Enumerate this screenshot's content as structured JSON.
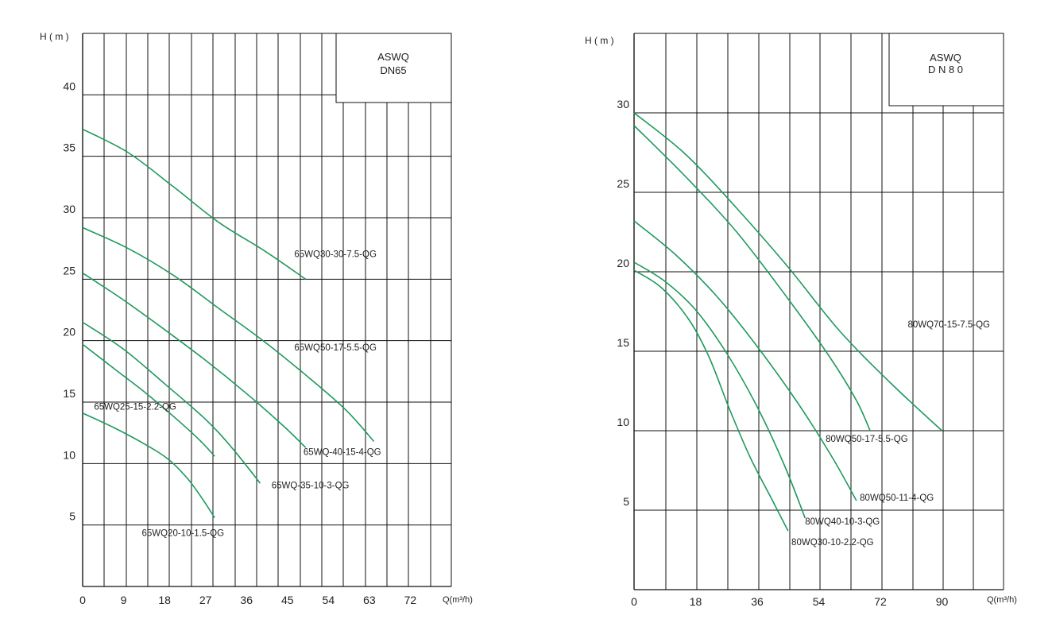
{
  "chart_data": [
    {
      "type": "line",
      "ylabel": "H ( m )",
      "xlabel": "Q(m³/h)",
      "legend_box": [
        "ASWQ",
        "DN65"
      ],
      "xlim": [
        0,
        81
      ],
      "ylim": [
        0,
        45
      ],
      "x_ticks": [
        0,
        9,
        18,
        27,
        36,
        45,
        54,
        63,
        72
      ],
      "y_ticks": [
        5,
        10,
        15,
        20,
        25,
        30,
        35,
        40
      ],
      "grid": true,
      "line_color": "#1e9a5c",
      "series": [
        {
          "name": "65WQ30-30-7.5-QG",
          "points": [
            [
              0,
              37.2
            ],
            [
              10,
              35.3
            ],
            [
              20,
              32.5
            ],
            [
              30,
              29.6
            ],
            [
              40,
              27.3
            ],
            [
              49,
              25.0
            ]
          ]
        },
        {
          "name": "65WQ50-17-5.5-QG",
          "points": [
            [
              0,
              29.2
            ],
            [
              10,
              27.5
            ],
            [
              20,
              25.3
            ],
            [
              30,
              22.6
            ],
            [
              40,
              19.9
            ],
            [
              50,
              16.9
            ],
            [
              58,
              14.3
            ],
            [
              64,
              11.8
            ]
          ]
        },
        {
          "name": "65WQ-40-15-4-QG",
          "points": [
            [
              0,
              25.5
            ],
            [
              9,
              23.3
            ],
            [
              18,
              20.9
            ],
            [
              27,
              18.4
            ],
            [
              36,
              15.7
            ],
            [
              44,
              13.1
            ],
            [
              49,
              11.3
            ]
          ]
        },
        {
          "name": "65WQ-35-10-3-QG",
          "points": [
            [
              0,
              21.5
            ],
            [
              9,
              19.3
            ],
            [
              18,
              16.5
            ],
            [
              27,
              13.6
            ],
            [
              33,
              11.2
            ],
            [
              39,
              8.4
            ]
          ]
        },
        {
          "name": "65WQ25-15-2.2-QG",
          "points": [
            [
              0,
              19.7
            ],
            [
              7,
              17.7
            ],
            [
              14,
              15.7
            ],
            [
              21,
              13.5
            ],
            [
              26,
              11.8
            ],
            [
              29,
              10.6
            ]
          ]
        },
        {
          "name": "65WQ20-10-1.5-QG",
          "points": [
            [
              0,
              14.1
            ],
            [
              7,
              12.9
            ],
            [
              14,
              11.5
            ],
            [
              19,
              10.3
            ],
            [
              23,
              8.8
            ],
            [
              26,
              7.3
            ],
            [
              29,
              5.6
            ]
          ]
        }
      ],
      "annotations": [
        {
          "text": "65WQ30-30-7.5-QG",
          "x": 46.5,
          "y": 26.8
        },
        {
          "text": "65WQ50-17-5.5-QG",
          "x": 46.5,
          "y": 19.2
        },
        {
          "text": "65WQ-40-15-4-QG",
          "x": 48.5,
          "y": 10.7
        },
        {
          "text": "65WQ-35-10-3-QG",
          "x": 41.5,
          "y": 8.0
        },
        {
          "text": "65WQ25-15-2.2-QG",
          "x": 2.5,
          "y": 14.4
        },
        {
          "text": "65WQ20-10-1.5-QG",
          "x": 13.0,
          "y": 4.1
        }
      ]
    },
    {
      "type": "line",
      "ylabel": "H ( m )",
      "xlabel": "Q(m³/h)",
      "legend_box": [
        "ASWQ",
        "D N 8 0"
      ],
      "xlim": [
        0,
        108
      ],
      "ylim": [
        0,
        35
      ],
      "x_ticks": [
        0,
        18,
        36,
        54,
        72,
        90
      ],
      "y_ticks": [
        5,
        10,
        15,
        20,
        25,
        30
      ],
      "grid": true,
      "line_color": "#1e9a5c",
      "series": [
        {
          "name": "80WQ70-15-7.5-QG",
          "points": [
            [
              0,
              30.0
            ],
            [
              15,
              27.4
            ],
            [
              30,
              24.0
            ],
            [
              45,
              20.3
            ],
            [
              60,
              16.3
            ],
            [
              75,
              13.0
            ],
            [
              90,
              10.0
            ]
          ]
        },
        {
          "name": "80WQ50-17-5.5-QG",
          "points": [
            [
              0,
              29.2
            ],
            [
              15,
              26.0
            ],
            [
              30,
              22.5
            ],
            [
              45,
              18.3
            ],
            [
              57,
              14.7
            ],
            [
              65,
              11.9
            ],
            [
              69,
              10.0
            ]
          ]
        },
        {
          "name": "80WQ50-11-4-QG",
          "points": [
            [
              0,
              23.2
            ],
            [
              12,
              21.1
            ],
            [
              24,
              18.5
            ],
            [
              36,
              15.3
            ],
            [
              48,
              11.7
            ],
            [
              58,
              8.3
            ],
            [
              65,
              5.6
            ]
          ]
        },
        {
          "name": "80WQ40-10-3-QG",
          "points": [
            [
              0,
              20.6
            ],
            [
              9,
              19.4
            ],
            [
              18,
              17.6
            ],
            [
              27,
              14.9
            ],
            [
              36,
              11.5
            ],
            [
              44,
              7.8
            ],
            [
              50,
              4.5
            ]
          ]
        },
        {
          "name": "80WQ30-10-2.2-QG",
          "points": [
            [
              0,
              20.1
            ],
            [
              8,
              19.0
            ],
            [
              16,
              17.0
            ],
            [
              22,
              14.6
            ],
            [
              28,
              11.3
            ],
            [
              34,
              8.3
            ],
            [
              40,
              5.8
            ],
            [
              45,
              3.7
            ]
          ]
        }
      ],
      "annotations": [
        {
          "text": "80WQ70-15-7.5-QG",
          "x": 80.0,
          "y": 16.5
        },
        {
          "text": "80WQ50-17-5.5-QG",
          "x": 56.0,
          "y": 9.3
        },
        {
          "text": "80WQ50-11-4-QG",
          "x": 66.0,
          "y": 5.6
        },
        {
          "text": "80WQ40-10-3-QG",
          "x": 50.0,
          "y": 4.1
        },
        {
          "text": "80WQ30-10-2.2-QG",
          "x": 46.0,
          "y": 2.8
        }
      ]
    }
  ]
}
